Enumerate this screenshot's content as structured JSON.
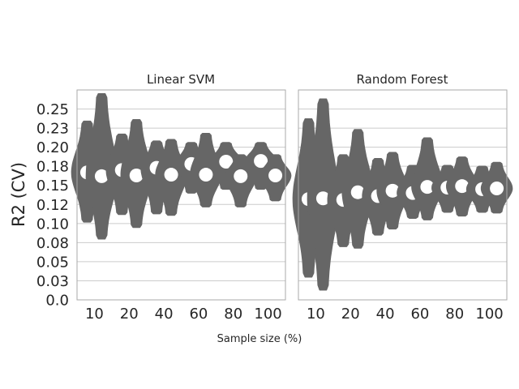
{
  "figure": {
    "ylabel": "R2 (CV)",
    "xlabel": "Sample size (%)"
  },
  "colors": {
    "violin": "#666666",
    "median": "#ffffff",
    "grid": "#cccccc",
    "frame": "#aaaaaa"
  },
  "chart_data": [
    {
      "type": "violin",
      "title": "Linear SVM",
      "categories": [
        "10",
        "20",
        "40",
        "60",
        "80",
        "100"
      ],
      "ylim": [
        0,
        0.275
      ],
      "yticks": [
        "0.0",
        "0.03",
        "0.05",
        "0.08",
        "0.10",
        "0.12",
        "0.15",
        "0.18",
        "0.20",
        "0.23",
        "0.25"
      ],
      "ytick_values": [
        0,
        0.025,
        0.05,
        0.075,
        0.1,
        0.125,
        0.15,
        0.175,
        0.2,
        0.225,
        0.25
      ],
      "grid": true,
      "distributions": [
        {
          "category": "10",
          "min": 0.102,
          "max": 0.234,
          "median": 0.167
        },
        {
          "category": "10",
          "min": 0.08,
          "max": 0.27,
          "median": 0.162
        },
        {
          "category": "20",
          "min": 0.112,
          "max": 0.217,
          "median": 0.17
        },
        {
          "category": "20",
          "min": 0.095,
          "max": 0.236,
          "median": 0.163
        },
        {
          "category": "40",
          "min": 0.113,
          "max": 0.208,
          "median": 0.173
        },
        {
          "category": "40",
          "min": 0.111,
          "max": 0.21,
          "median": 0.164
        },
        {
          "category": "60",
          "min": 0.14,
          "max": 0.206,
          "median": 0.178
        },
        {
          "category": "60",
          "min": 0.122,
          "max": 0.218,
          "median": 0.164
        },
        {
          "category": "80",
          "min": 0.145,
          "max": 0.206,
          "median": 0.181
        },
        {
          "category": "80",
          "min": 0.122,
          "max": 0.19,
          "median": 0.162
        },
        {
          "category": "100",
          "min": 0.145,
          "max": 0.206,
          "median": 0.182
        },
        {
          "category": "100",
          "min": 0.13,
          "max": 0.19,
          "median": 0.163
        }
      ]
    },
    {
      "type": "violin",
      "title": "Random Forest",
      "categories": [
        "10",
        "20",
        "40",
        "60",
        "80",
        "100"
      ],
      "ylim": [
        0,
        0.275
      ],
      "grid": true,
      "distributions": [
        {
          "category": "10",
          "min": 0.03,
          "max": 0.237,
          "median": 0.132
        },
        {
          "category": "10",
          "min": 0.013,
          "max": 0.263,
          "median": 0.133
        },
        {
          "category": "20",
          "min": 0.07,
          "max": 0.19,
          "median": 0.131
        },
        {
          "category": "20",
          "min": 0.068,
          "max": 0.223,
          "median": 0.141
        },
        {
          "category": "40",
          "min": 0.085,
          "max": 0.185,
          "median": 0.136
        },
        {
          "category": "40",
          "min": 0.093,
          "max": 0.193,
          "median": 0.143
        },
        {
          "category": "60",
          "min": 0.107,
          "max": 0.176,
          "median": 0.14
        },
        {
          "category": "60",
          "min": 0.105,
          "max": 0.212,
          "median": 0.148
        },
        {
          "category": "80",
          "min": 0.115,
          "max": 0.176,
          "median": 0.147
        },
        {
          "category": "80",
          "min": 0.11,
          "max": 0.187,
          "median": 0.149
        },
        {
          "category": "100",
          "min": 0.115,
          "max": 0.175,
          "median": 0.145
        },
        {
          "category": "100",
          "min": 0.114,
          "max": 0.18,
          "median": 0.146
        }
      ]
    }
  ]
}
